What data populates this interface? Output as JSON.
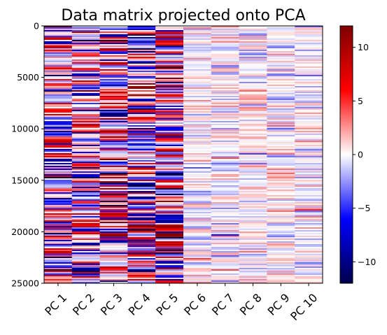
{
  "chart_data": {
    "type": "heatmap",
    "title": "Data matrix projected onto PCA",
    "xlabel": "",
    "ylabel": "",
    "columns": [
      "PC 1",
      "PC 2",
      "PC 3",
      "PC 4",
      "PC 5",
      "PC 6",
      "PC 7",
      "PC 8",
      "PC 9",
      "PC 10"
    ],
    "column_std": [
      6,
      6,
      6,
      6,
      6,
      1.5,
      1.5,
      1.5,
      1.5,
      1.5
    ],
    "n_rows": 25000,
    "y_ticks": [
      "0",
      "5000",
      "10000",
      "15000",
      "20000",
      "25000"
    ],
    "y_tick_values": [
      0,
      5000,
      10000,
      15000,
      20000,
      25000
    ],
    "colorbar": {
      "colormap": "seismic",
      "range": [
        -12,
        12
      ],
      "ticks": [
        "10",
        "5",
        "0",
        "−5",
        "−10"
      ],
      "tick_values": [
        10,
        5,
        0,
        -5,
        -10
      ]
    },
    "grid": false
  }
}
